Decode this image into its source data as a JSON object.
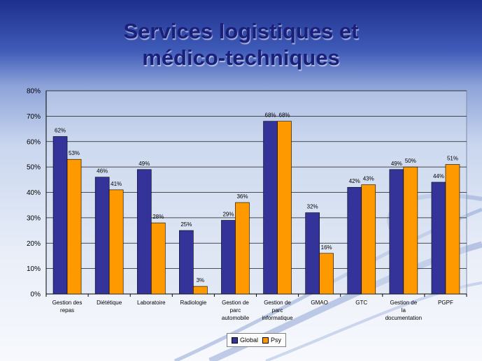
{
  "slide": {
    "title_line1": "Services logistiques et",
    "title_line2": "médico-techniques"
  },
  "chart_data": {
    "type": "bar",
    "categories": [
      "Gestion des repas",
      "Diététique",
      "Laboratoire",
      "Radiologie",
      "Gestion de parc automobile",
      "Gestion de parc informatique",
      "GMAO",
      "GTC",
      "Gestion de la documentation",
      "PGPF"
    ],
    "series": [
      {
        "name": "Global",
        "color": "#333399",
        "values": [
          62,
          46,
          49,
          25,
          29,
          68,
          32,
          42,
          49,
          44
        ]
      },
      {
        "name": "Psy",
        "color": "#FF9900",
        "values": [
          53,
          41,
          28,
          3,
          36,
          68,
          16,
          43,
          50,
          51
        ]
      }
    ],
    "y_ticks": [
      "0%",
      "10%",
      "20%",
      "30%",
      "40%",
      "50%",
      "60%",
      "70%",
      "80%"
    ],
    "ylim": [
      0,
      80
    ],
    "value_suffix": "%",
    "grid": true,
    "legend_position": "bottom"
  }
}
